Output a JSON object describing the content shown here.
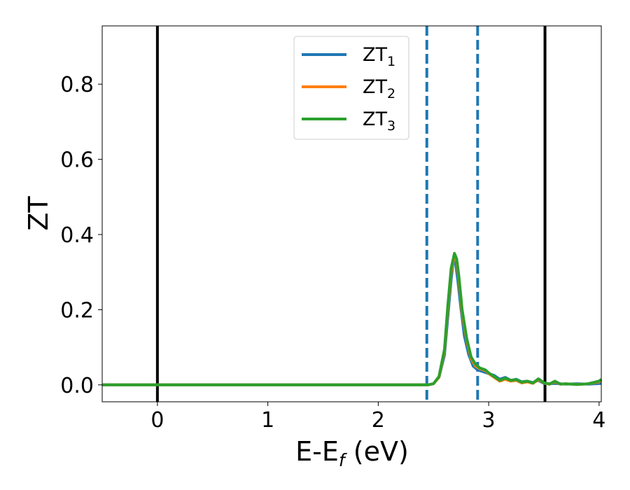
{
  "chart_data": {
    "type": "line",
    "xlabel_base": "E-E",
    "xlabel_sub": "f",
    "xlabel_unit": " (eV)",
    "ylabel": "ZT",
    "xlim": [
      -0.5,
      4.02
    ],
    "ylim": [
      -0.045,
      0.955
    ],
    "xticks": [
      0,
      1,
      2,
      3,
      4
    ],
    "xtick_labels": [
      "0",
      "1",
      "2",
      "3",
      "4"
    ],
    "yticks": [
      0.0,
      0.2,
      0.4,
      0.6,
      0.8
    ],
    "ytick_labels": [
      "0.0",
      "0.2",
      "0.4",
      "0.6",
      "0.8"
    ],
    "grid": false,
    "legend_position": "top-center",
    "reference_lines": [
      {
        "x": 0.0,
        "style": "solid",
        "color": "#000000"
      },
      {
        "x": 2.44,
        "style": "dashed",
        "color": "#1f77b4"
      },
      {
        "x": 2.9,
        "style": "dashed",
        "color": "#1f77b4"
      },
      {
        "x": 3.51,
        "style": "solid",
        "color": "#000000"
      }
    ],
    "series": [
      {
        "name": "ZT",
        "name_sub": "1",
        "color": "#1f77b4",
        "points": [
          [
            -0.5,
            0
          ],
          [
            2.0,
            0
          ],
          [
            2.45,
            0
          ],
          [
            2.5,
            0.003
          ],
          [
            2.55,
            0.02
          ],
          [
            2.6,
            0.08
          ],
          [
            2.63,
            0.18
          ],
          [
            2.66,
            0.28
          ],
          [
            2.68,
            0.33
          ],
          [
            2.7,
            0.325
          ],
          [
            2.72,
            0.28
          ],
          [
            2.75,
            0.2
          ],
          [
            2.78,
            0.13
          ],
          [
            2.82,
            0.08
          ],
          [
            2.86,
            0.05
          ],
          [
            2.9,
            0.04
          ],
          [
            2.95,
            0.035
          ],
          [
            3.0,
            0.03
          ],
          [
            3.05,
            0.025
          ],
          [
            3.1,
            0.015
          ],
          [
            3.15,
            0.02
          ],
          [
            3.2,
            0.012
          ],
          [
            3.25,
            0.015
          ],
          [
            3.3,
            0.008
          ],
          [
            3.35,
            0.01
          ],
          [
            3.4,
            0.006
          ],
          [
            3.45,
            0.012
          ],
          [
            3.5,
            0.004
          ],
          [
            3.55,
            0.003
          ],
          [
            3.6,
            0.004
          ],
          [
            3.7,
            0.002
          ],
          [
            3.8,
            0.003
          ],
          [
            3.9,
            0.002
          ],
          [
            4.02,
            0.004
          ]
        ]
      },
      {
        "name": "ZT",
        "name_sub": "2",
        "color": "#ff7f0e",
        "points": [
          [
            -0.5,
            0
          ],
          [
            2.0,
            0
          ],
          [
            2.45,
            0
          ],
          [
            2.5,
            0.003
          ],
          [
            2.55,
            0.02
          ],
          [
            2.6,
            0.09
          ],
          [
            2.63,
            0.2
          ],
          [
            2.66,
            0.3
          ],
          [
            2.69,
            0.345
          ],
          [
            2.71,
            0.33
          ],
          [
            2.73,
            0.28
          ],
          [
            2.76,
            0.19
          ],
          [
            2.8,
            0.12
          ],
          [
            2.84,
            0.07
          ],
          [
            2.88,
            0.05
          ],
          [
            2.92,
            0.043
          ],
          [
            2.97,
            0.038
          ],
          [
            3.0,
            0.03
          ],
          [
            3.05,
            0.02
          ],
          [
            3.1,
            0.01
          ],
          [
            3.15,
            0.015
          ],
          [
            3.2,
            0.01
          ],
          [
            3.25,
            0.012
          ],
          [
            3.3,
            0.005
          ],
          [
            3.35,
            0.008
          ],
          [
            3.4,
            0.004
          ],
          [
            3.45,
            0.014
          ],
          [
            3.5,
            0.005
          ],
          [
            3.55,
            0.002
          ],
          [
            3.6,
            0.008
          ],
          [
            3.65,
            0.002
          ],
          [
            3.7,
            0.003
          ],
          [
            3.8,
            0.001
          ],
          [
            3.9,
            0.003
          ],
          [
            4.0,
            0.008
          ],
          [
            4.02,
            0.012
          ]
        ]
      },
      {
        "name": "ZT",
        "name_sub": "3",
        "color": "#2ca02c",
        "points": [
          [
            -0.5,
            0
          ],
          [
            2.0,
            0
          ],
          [
            2.45,
            0
          ],
          [
            2.5,
            0.003
          ],
          [
            2.55,
            0.022
          ],
          [
            2.6,
            0.095
          ],
          [
            2.63,
            0.21
          ],
          [
            2.66,
            0.31
          ],
          [
            2.69,
            0.35
          ],
          [
            2.71,
            0.335
          ],
          [
            2.73,
            0.29
          ],
          [
            2.76,
            0.2
          ],
          [
            2.8,
            0.125
          ],
          [
            2.84,
            0.075
          ],
          [
            2.88,
            0.055
          ],
          [
            2.92,
            0.045
          ],
          [
            2.97,
            0.04
          ],
          [
            3.0,
            0.032
          ],
          [
            3.05,
            0.022
          ],
          [
            3.1,
            0.012
          ],
          [
            3.15,
            0.018
          ],
          [
            3.2,
            0.012
          ],
          [
            3.25,
            0.014
          ],
          [
            3.3,
            0.007
          ],
          [
            3.35,
            0.01
          ],
          [
            3.4,
            0.005
          ],
          [
            3.45,
            0.016
          ],
          [
            3.5,
            0.006
          ],
          [
            3.55,
            0.002
          ],
          [
            3.6,
            0.01
          ],
          [
            3.65,
            0.002
          ],
          [
            3.7,
            0.003
          ],
          [
            3.8,
            0.001
          ],
          [
            3.9,
            0.003
          ],
          [
            4.0,
            0.01
          ],
          [
            4.02,
            0.015
          ]
        ]
      }
    ]
  }
}
